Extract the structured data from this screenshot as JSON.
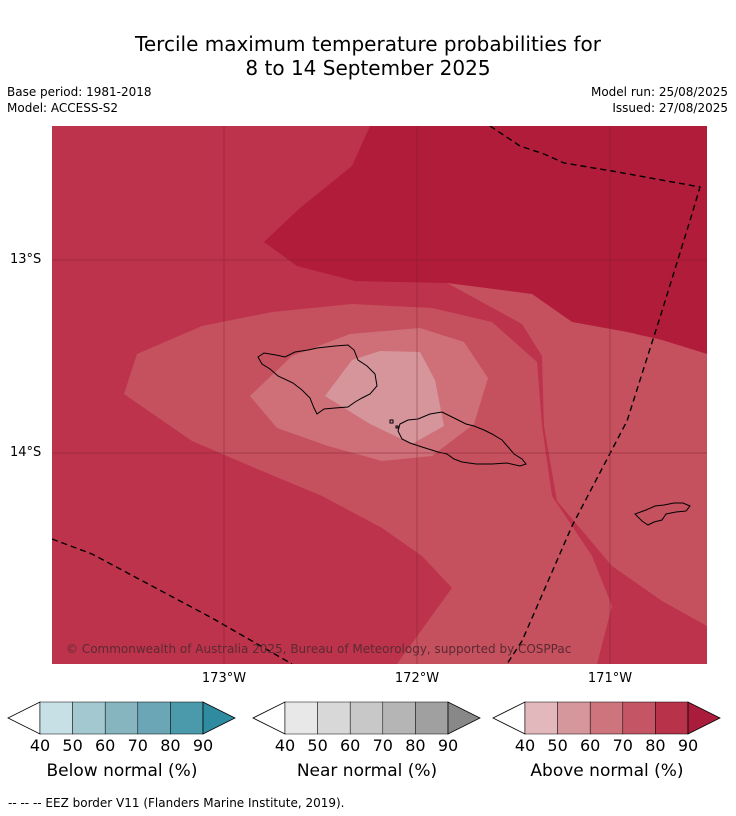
{
  "title": {
    "line1": "Tercile maximum temperature probabilities for",
    "line2": "8 to 14 September 2025"
  },
  "meta": {
    "base_period": "Base period: 1981-2018",
    "model": "Model: ACCESS-S2",
    "model_run": "Model run: 25/08/2025",
    "issued": "Issued: 27/08/2025"
  },
  "map": {
    "attribution": "© Commonwealth of Australia 2025, Bureau of Meteorology, supported by COSPPac",
    "lat_labels": [
      "13°S",
      "14°S"
    ],
    "lon_labels": [
      "173°W",
      "172°W",
      "171°W"
    ],
    "colors": {
      "p90": "#b01c3a",
      "p80": "#bd334b",
      "p70": "#c5515f",
      "p60": "#cf6f78",
      "p50": "#d5959b",
      "grid": "#7a2030",
      "eez": "#000000",
      "coast": "#000000"
    }
  },
  "colorbars": [
    {
      "label": "Below normal (%)",
      "ticks": [
        "40",
        "50",
        "60",
        "70",
        "80",
        "90"
      ],
      "colors": [
        "#c6e0e6",
        "#a4c8cf",
        "#86b5c0",
        "#6aa6b5",
        "#4a9aab",
        "#2f8ca0"
      ]
    },
    {
      "label": "Near normal (%)",
      "ticks": [
        "40",
        "50",
        "60",
        "70",
        "80",
        "90"
      ],
      "colors": [
        "#e8e8e8",
        "#d8d8d8",
        "#c8c8c8",
        "#b5b5b5",
        "#a0a0a0",
        "#888888"
      ]
    },
    {
      "label": "Above normal (%)",
      "ticks": [
        "40",
        "50",
        "60",
        "70",
        "80",
        "90"
      ],
      "colors": [
        "#e3b8bd",
        "#d5979c",
        "#cd747c",
        "#c35565",
        "#b8324a",
        "#a91c3b"
      ]
    }
  ],
  "footnote": "--  --  -- EEZ border V11 (Flanders Marine Institute, 2019)."
}
